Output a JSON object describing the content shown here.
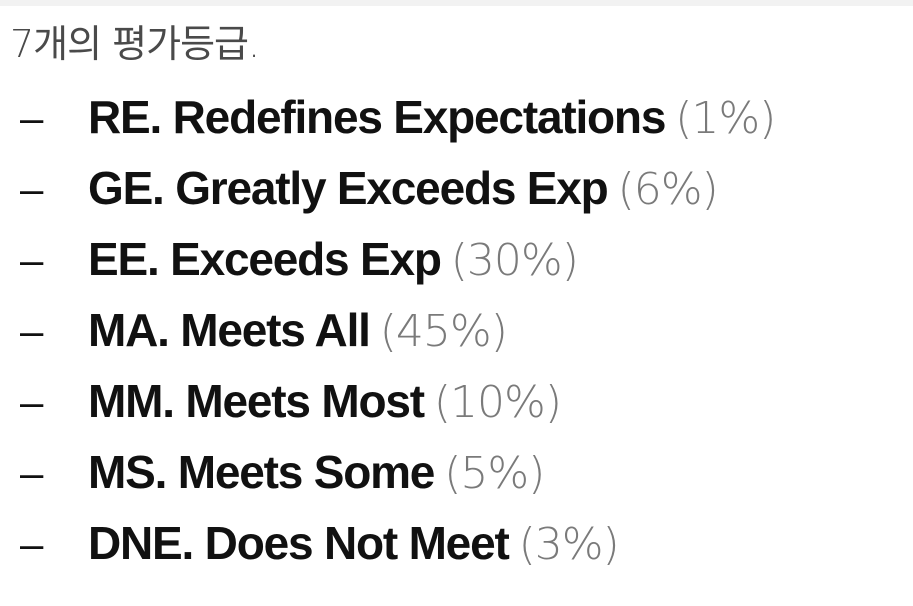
{
  "heading": "7개의 평가등급.",
  "grades": [
    {
      "dash": "–",
      "label": "RE. Redefines Expectations",
      "percent": "(1%)"
    },
    {
      "dash": "–",
      "label": "GE. Greatly Exceeds Exp",
      "percent": "(6%)"
    },
    {
      "dash": "–",
      "label": "EE. Exceeds Exp",
      "percent": "(30%)"
    },
    {
      "dash": "–",
      "label": "MA. Meets All",
      "percent": "(45%)"
    },
    {
      "dash": "–",
      "label": "MM. Meets Most",
      "percent": "(10%)"
    },
    {
      "dash": "–",
      "label": "MS. Meets Some",
      "percent": "(5%)"
    },
    {
      "dash": "–",
      "label": "DNE. Does Not Meet",
      "percent": "(3%)"
    }
  ]
}
